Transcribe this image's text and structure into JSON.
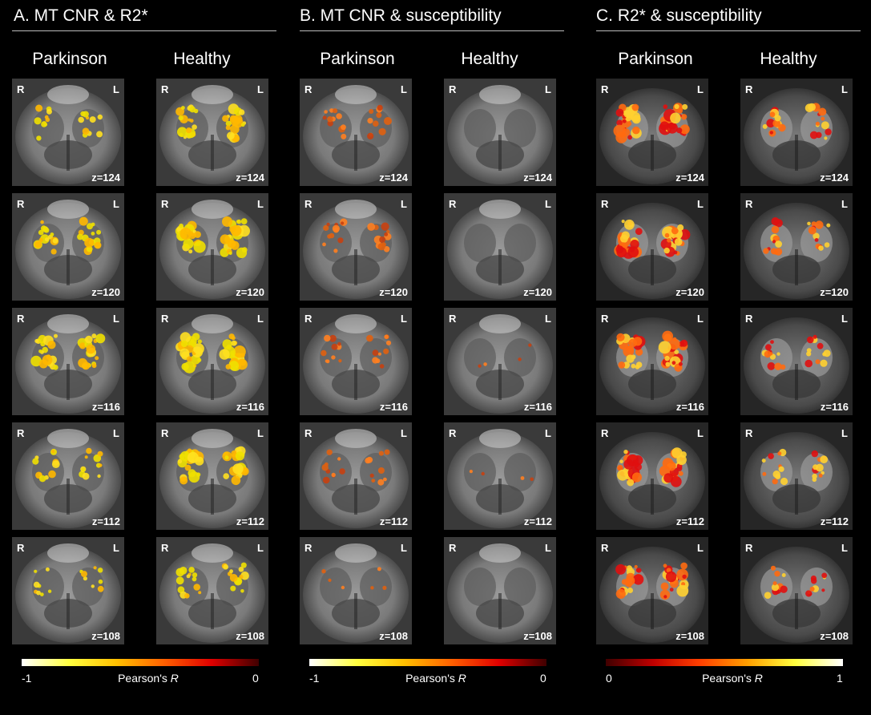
{
  "panels": [
    {
      "title": "A. MT CNR & R2*",
      "columns": [
        "Parkinson",
        "Healthy"
      ],
      "slices": [
        "z=124",
        "z=120",
        "z=116",
        "z=112",
        "z=108"
      ],
      "orientation": {
        "right": "R",
        "left": "L"
      },
      "colorbar": {
        "min_label": "-1",
        "max_label": "0",
        "name": "Pearson's",
        "name_var": "R",
        "colors": [
          "#ffffff",
          "#ffff40",
          "#ffc000",
          "#ff6000",
          "#e00000",
          "#400000"
        ]
      },
      "overlay_colors": [
        "#f0e000",
        "#ffe020",
        "#ffb800"
      ],
      "background": "mr-grey"
    },
    {
      "title": "B. MT CNR & susceptibility",
      "columns": [
        "Parkinson",
        "Healthy"
      ],
      "slices": [
        "z=124",
        "z=120",
        "z=116",
        "z=112",
        "z=108"
      ],
      "orientation": {
        "right": "R",
        "left": "L"
      },
      "colorbar": {
        "min_label": "-1",
        "max_label": "0",
        "name": "Pearson's",
        "name_var": "R",
        "colors": [
          "#ffffff",
          "#ffff40",
          "#ffc000",
          "#ff6000",
          "#e00000",
          "#400000"
        ]
      },
      "overlay_colors": [
        "#e06010",
        "#ff8020",
        "#c84010"
      ],
      "background": "mr-grey"
    },
    {
      "title": "C. R2* & susceptibility",
      "columns": [
        "Parkinson",
        "Healthy"
      ],
      "slices": [
        "z=124",
        "z=120",
        "z=116",
        "z=112",
        "z=108"
      ],
      "orientation": {
        "right": "R",
        "left": "L"
      },
      "colorbar": {
        "min_label": "0",
        "max_label": "1",
        "name": "Pearson's",
        "name_var": "R",
        "colors": [
          "#400000",
          "#c00000",
          "#ff4000",
          "#ffa000",
          "#ffff40",
          "#ffffff"
        ]
      },
      "overlay_colors": [
        "#e01010",
        "#ff6a10",
        "#ffd030"
      ],
      "background": "mr-dark-grey"
    }
  ]
}
